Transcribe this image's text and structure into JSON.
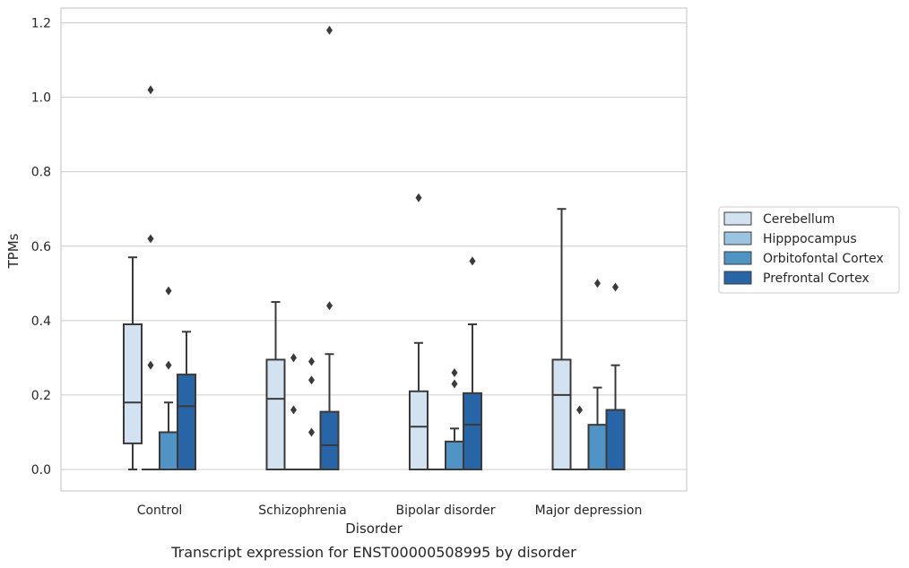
{
  "chart_data": {
    "type": "box",
    "caption": "Transcript expression for ENST00000508995 by disorder",
    "xlabel": "Disorder",
    "ylabel": "TPMs",
    "ylim": [
      -0.055,
      1.24
    ],
    "yticks": [
      "0.0",
      "0.2",
      "0.4",
      "0.6",
      "0.8",
      "1.0",
      "1.2"
    ],
    "ytick_values": [
      0.0,
      0.2,
      0.4,
      0.6,
      0.8,
      1.0,
      1.2
    ],
    "grid": "horizontal",
    "legend_position": "right",
    "categories": [
      "Control",
      "Schizophrenia",
      "Bipolar disorder",
      "Major depression"
    ],
    "series": [
      {
        "name": "Cerebellum",
        "color": "#d3e2f1",
        "boxes": [
          {
            "whisker_low": 0.0,
            "q1": 0.07,
            "median": 0.18,
            "q3": 0.39,
            "whisker_high": 0.57,
            "outliers": []
          },
          {
            "whisker_low": 0.0,
            "q1": 0.0,
            "median": 0.19,
            "q3": 0.295,
            "whisker_high": 0.45,
            "outliers": []
          },
          {
            "whisker_low": 0.0,
            "q1": 0.0,
            "median": 0.115,
            "q3": 0.21,
            "whisker_high": 0.34,
            "outliers": [
              0.73
            ]
          },
          {
            "whisker_low": 0.0,
            "q1": 0.0,
            "median": 0.2,
            "q3": 0.295,
            "whisker_high": 0.7,
            "outliers": []
          }
        ]
      },
      {
        "name": "Hipppocampus",
        "color": "#9ac5e1",
        "boxes": [
          {
            "whisker_low": 0.0,
            "q1": 0.0,
            "median": 0.0,
            "q3": 0.0,
            "whisker_high": 0.0,
            "outliers": [
              1.02,
              0.62,
              0.28
            ]
          },
          {
            "whisker_low": 0.0,
            "q1": 0.0,
            "median": 0.0,
            "q3": 0.0,
            "whisker_high": 0.0,
            "outliers": [
              0.3,
              0.16
            ]
          },
          {
            "whisker_low": 0.0,
            "q1": 0.0,
            "median": 0.0,
            "q3": 0.0,
            "whisker_high": 0.0,
            "outliers": []
          },
          {
            "whisker_low": 0.0,
            "q1": 0.0,
            "median": 0.0,
            "q3": 0.0,
            "whisker_high": 0.0,
            "outliers": [
              0.16
            ]
          }
        ]
      },
      {
        "name": "Orbitofontal Cortex",
        "color": "#5094c6",
        "boxes": [
          {
            "whisker_low": 0.0,
            "q1": 0.0,
            "median": 0.0,
            "q3": 0.1,
            "whisker_high": 0.18,
            "outliers": [
              0.48,
              0.28
            ]
          },
          {
            "whisker_low": 0.0,
            "q1": 0.0,
            "median": 0.0,
            "q3": 0.0,
            "whisker_high": 0.0,
            "outliers": [
              0.29,
              0.24,
              0.1
            ]
          },
          {
            "whisker_low": 0.0,
            "q1": 0.0,
            "median": 0.0,
            "q3": 0.075,
            "whisker_high": 0.11,
            "outliers": [
              0.26,
              0.23
            ]
          },
          {
            "whisker_low": 0.0,
            "q1": 0.0,
            "median": 0.0,
            "q3": 0.12,
            "whisker_high": 0.22,
            "outliers": [
              0.5
            ]
          }
        ]
      },
      {
        "name": "Prefrontal Cortex",
        "color": "#2865a6",
        "boxes": [
          {
            "whisker_low": 0.0,
            "q1": 0.0,
            "median": 0.17,
            "q3": 0.255,
            "whisker_high": 0.37,
            "outliers": []
          },
          {
            "whisker_low": 0.0,
            "q1": 0.0,
            "median": 0.065,
            "q3": 0.155,
            "whisker_high": 0.31,
            "outliers": [
              1.18,
              0.44
            ]
          },
          {
            "whisker_low": 0.0,
            "q1": 0.0,
            "median": 0.12,
            "q3": 0.205,
            "whisker_high": 0.39,
            "outliers": [
              0.56
            ]
          },
          {
            "whisker_low": 0.0,
            "q1": 0.0,
            "median": 0.0,
            "q3": 0.16,
            "whisker_high": 0.28,
            "outliers": [
              0.49
            ]
          }
        ]
      }
    ]
  }
}
